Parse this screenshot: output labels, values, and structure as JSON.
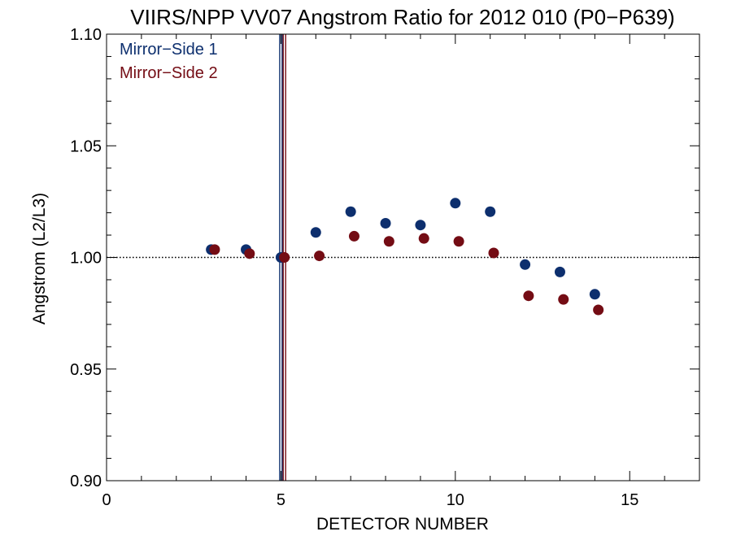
{
  "chart_data": {
    "type": "scatter",
    "title": "VIIRS/NPP VV07 Angstrom Ratio for 2012 010 (P0−P639)",
    "xlabel": "DETECTOR NUMBER",
    "ylabel": "Angstrom (L2/L3)",
    "xlim": [
      0,
      17
    ],
    "ylim": [
      0.9,
      1.1
    ],
    "x_ticks": [
      0,
      5,
      10,
      15
    ],
    "x_tick_labels": [
      "0",
      "5",
      "10",
      "15"
    ],
    "y_ticks": [
      0.9,
      0.95,
      1.0,
      1.05,
      1.1
    ],
    "y_tick_labels": [
      "0.90",
      "0.95",
      "1.00",
      "1.05",
      "1.10"
    ],
    "reference_line_y": 1.0,
    "legend_position": "top-left",
    "series": [
      {
        "name": "Mirror−Side 1",
        "color": "#0d2f6e",
        "x": [
          3,
          4,
          5,
          6,
          7,
          8,
          9,
          10,
          11,
          12,
          13,
          14
        ],
        "y": [
          1.0035,
          1.0035,
          1.0,
          1.0112,
          1.0205,
          1.0153,
          1.0145,
          1.0243,
          1.0205,
          0.9968,
          0.9935,
          0.9835
        ],
        "marker_x": 5
      },
      {
        "name": "Mirror−Side 2",
        "color": "#740c14",
        "x": [
          3.1,
          4.1,
          5.1,
          6.1,
          7.1,
          8.1,
          9.1,
          10.1,
          11.1,
          12.1,
          13.1,
          14.1
        ],
        "y": [
          1.0035,
          1.0017,
          1.0,
          1.0007,
          1.0095,
          1.0072,
          1.0085,
          1.0072,
          1.002,
          0.9828,
          0.9812,
          0.9765
        ],
        "marker_x": 5.1
      }
    ]
  }
}
